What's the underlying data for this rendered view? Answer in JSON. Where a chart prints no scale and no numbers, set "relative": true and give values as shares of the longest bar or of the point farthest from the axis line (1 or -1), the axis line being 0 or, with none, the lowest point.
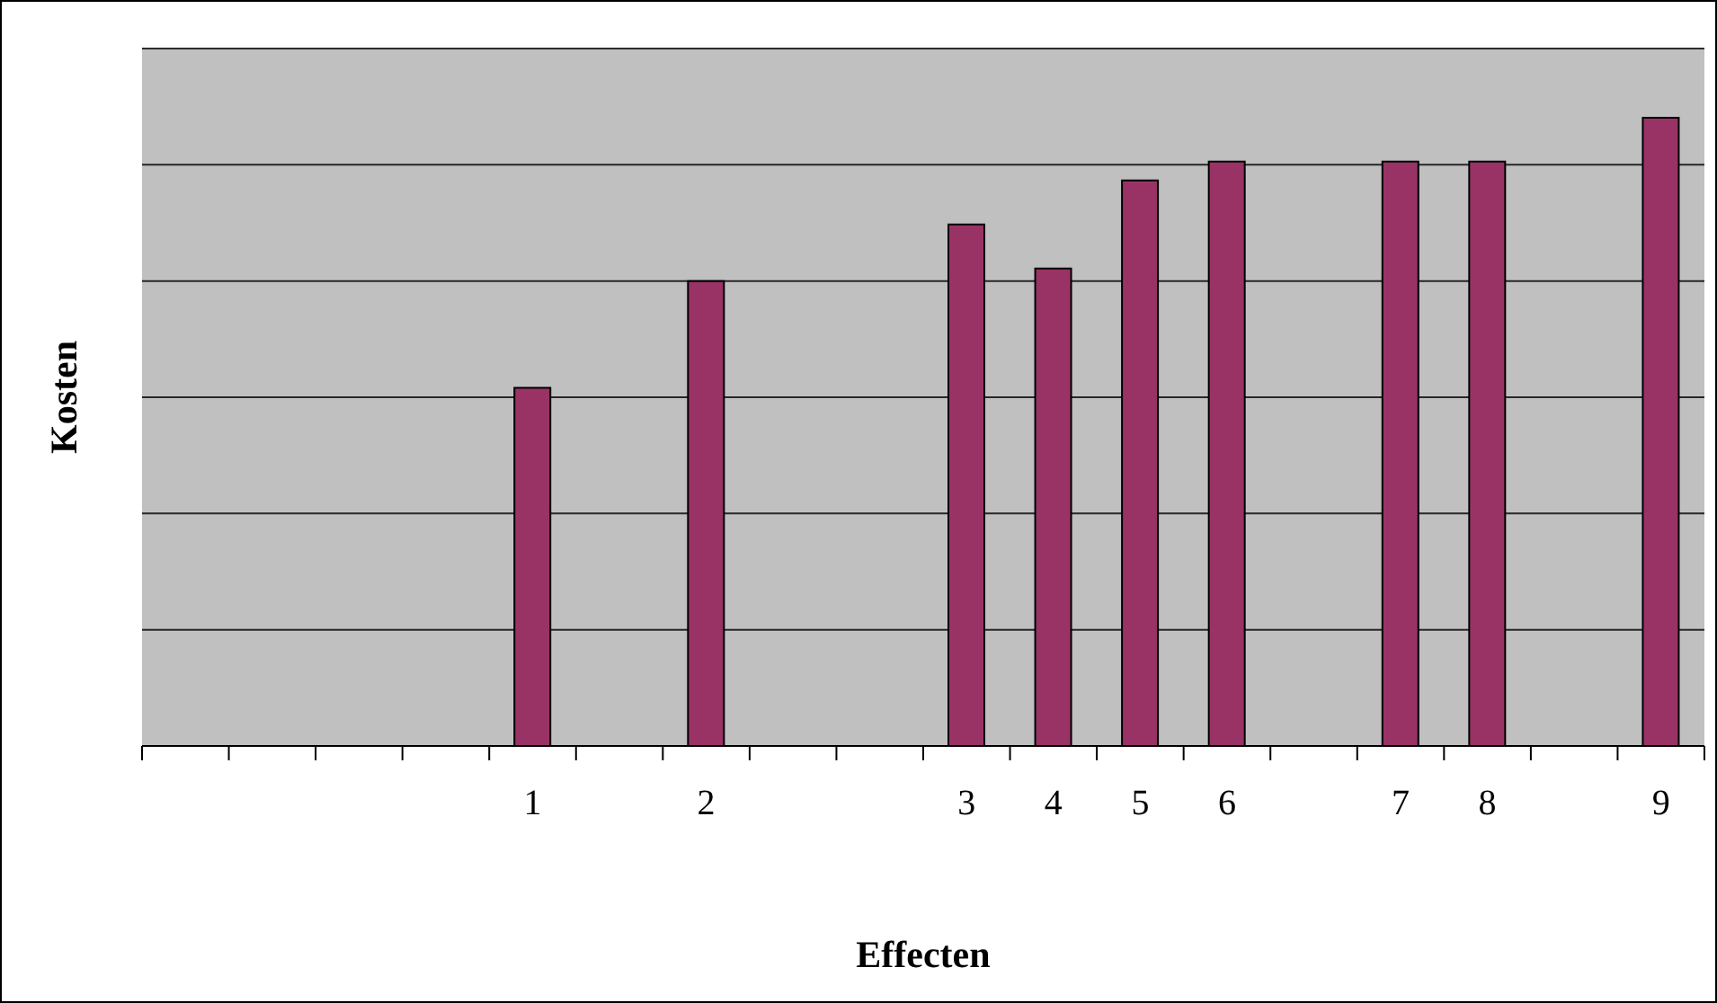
{
  "chart_data": {
    "type": "bar",
    "relative": true,
    "xlabel": "Effecten",
    "ylabel": "Kosten",
    "categories": [
      null,
      null,
      null,
      null,
      "1",
      null,
      "2",
      null,
      null,
      "3",
      "4",
      "5",
      "6",
      null,
      "7",
      "8",
      null,
      "9"
    ],
    "values": [
      null,
      null,
      null,
      null,
      0.57,
      null,
      0.74,
      null,
      null,
      0.83,
      0.76,
      0.9,
      0.93,
      null,
      0.93,
      0.93,
      null,
      1
    ],
    "color": "#993366",
    "grid": "y"
  }
}
